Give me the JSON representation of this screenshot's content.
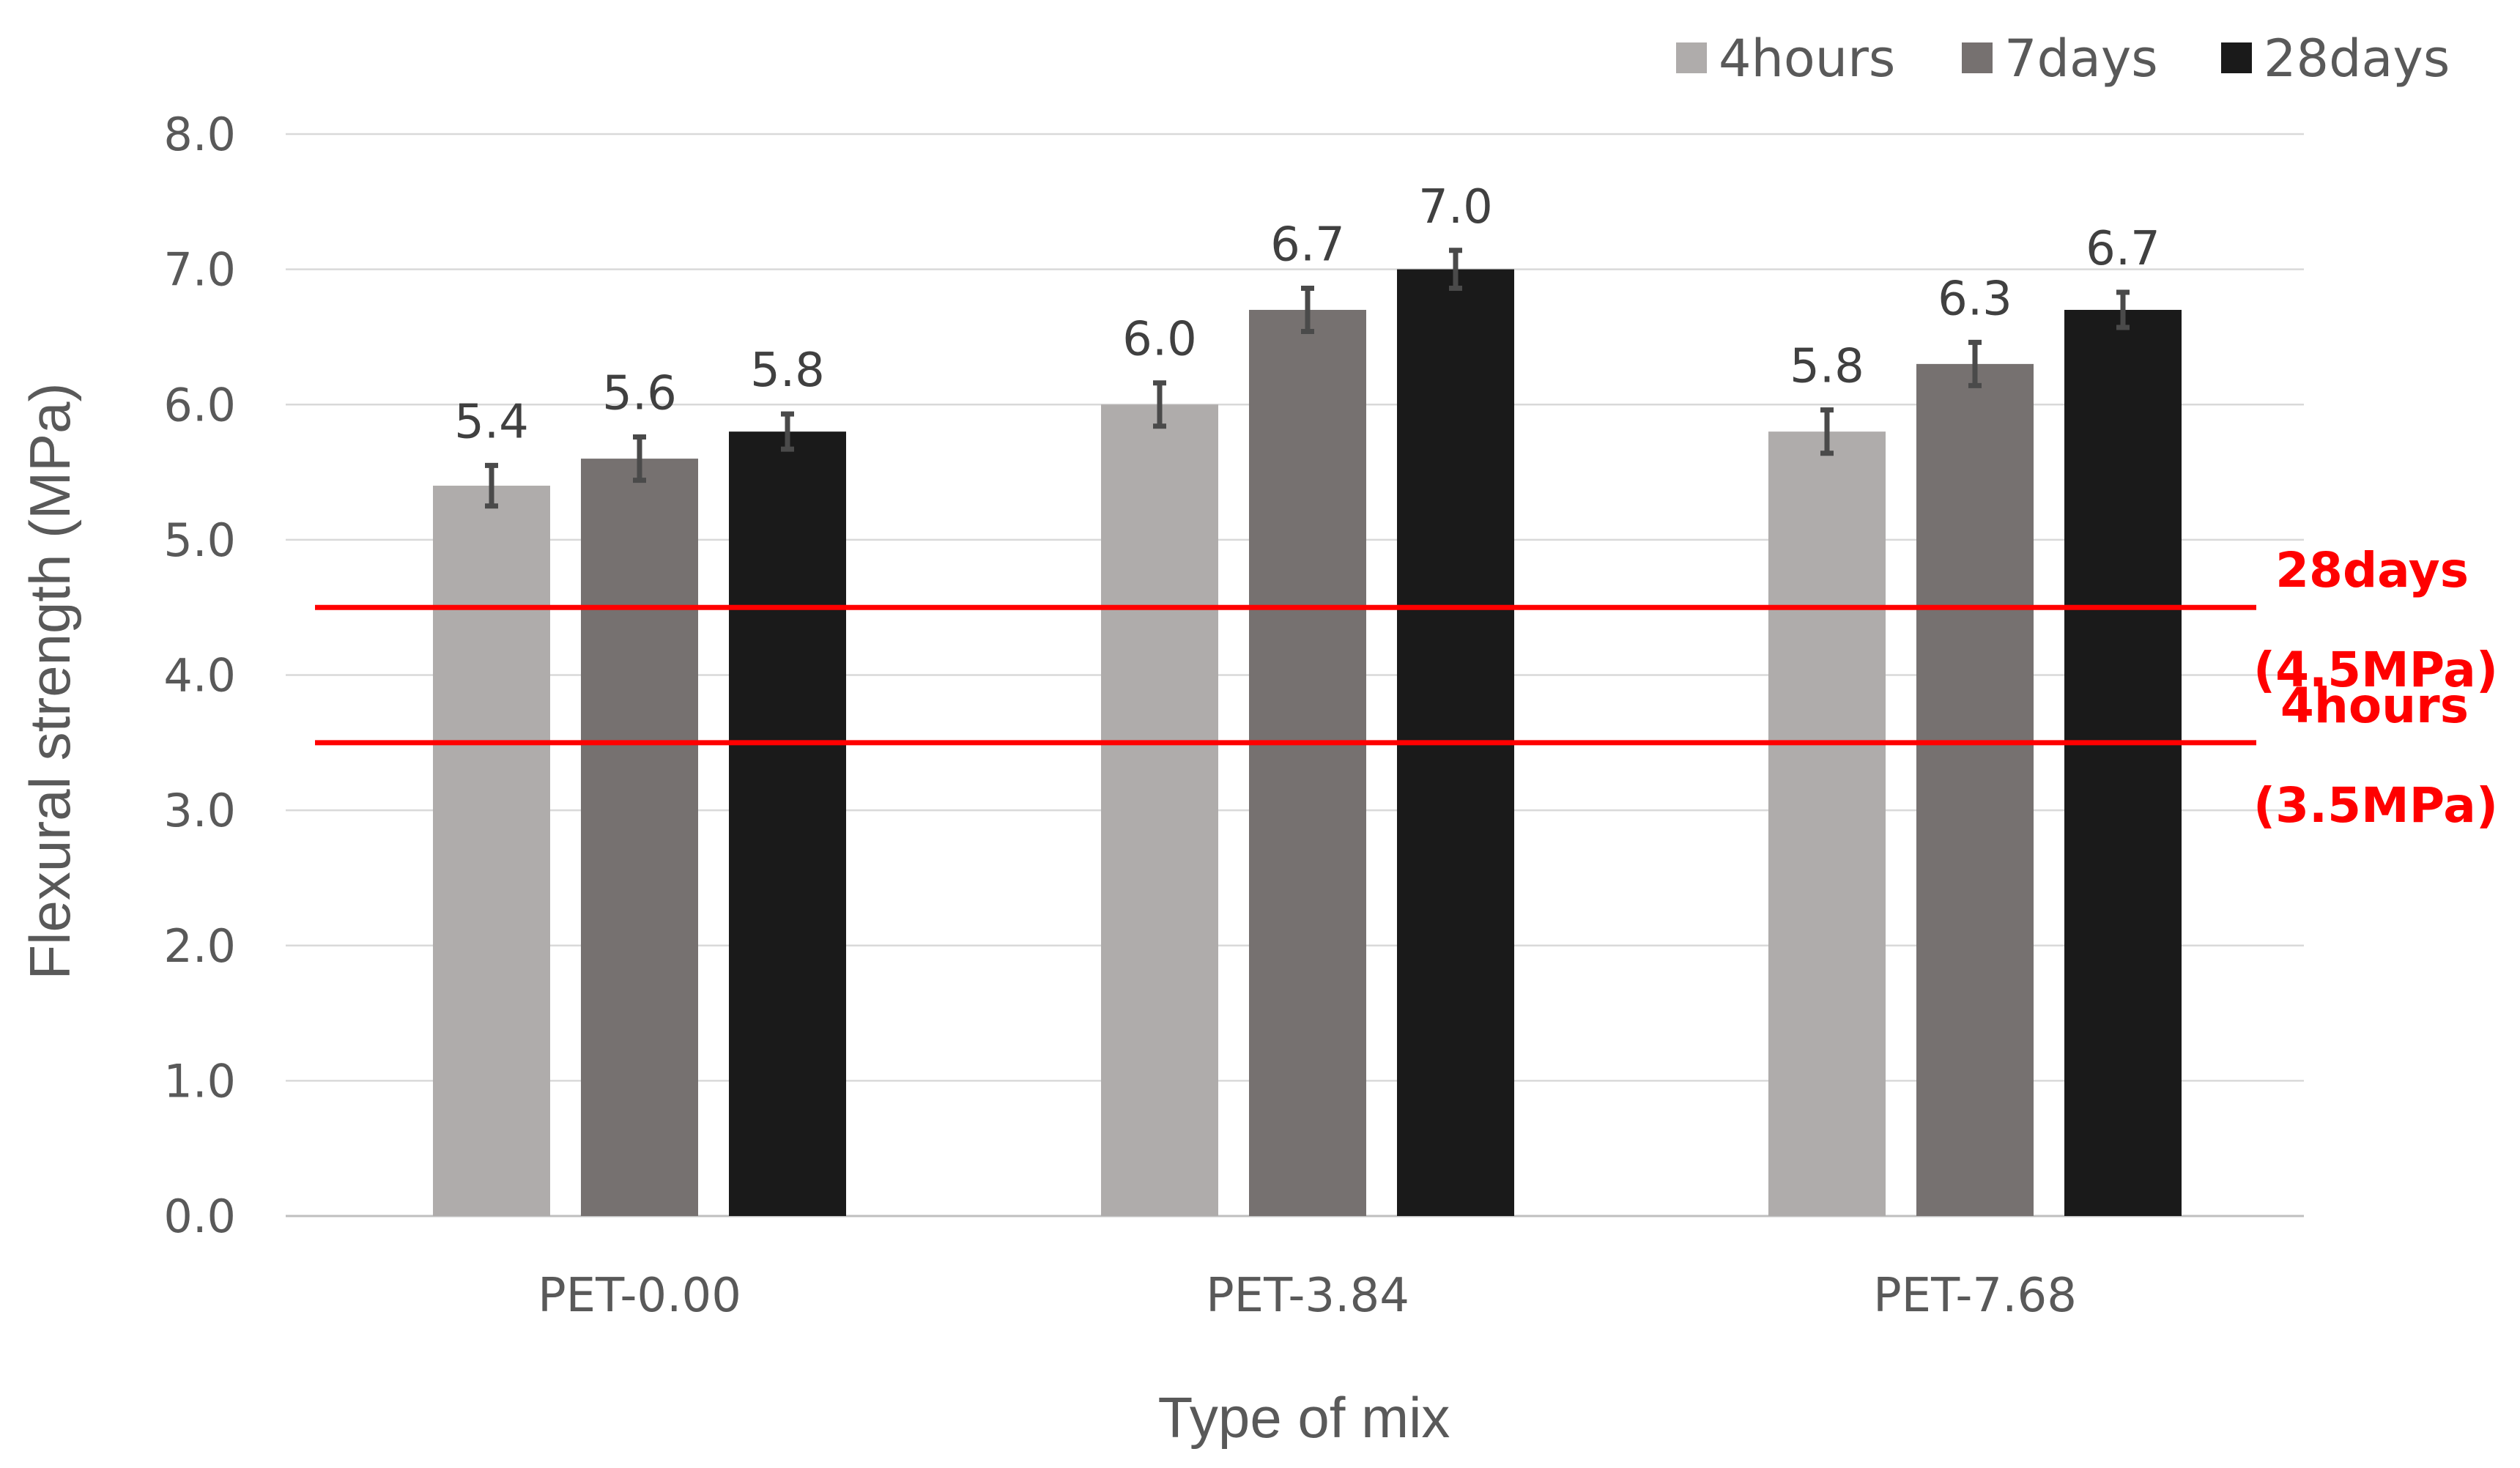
{
  "chart_data": {
    "type": "bar",
    "title": "",
    "xlabel": "Type of mix",
    "ylabel": "Flexural strength (MPa)",
    "ylim": [
      0,
      8
    ],
    "yticks": [
      "0.0",
      "1.0",
      "2.0",
      "3.0",
      "4.0",
      "5.0",
      "6.0",
      "7.0",
      "8.0"
    ],
    "grid": true,
    "legend_position": "top-right",
    "categories": [
      "PET-0.00",
      "PET-3.84",
      "PET-7.68"
    ],
    "series": [
      {
        "name": "4hours",
        "color": "#afacab",
        "values": [
          5.4,
          6.0,
          5.8
        ],
        "labels": [
          "5.4",
          "6.0",
          "5.8"
        ],
        "errors": [
          0.15,
          0.16,
          0.16
        ]
      },
      {
        "name": "7days",
        "color": "#767170",
        "values": [
          5.6,
          6.7,
          6.3
        ],
        "labels": [
          "5.6",
          "6.7",
          "6.3"
        ],
        "errors": [
          0.16,
          0.16,
          0.16
        ]
      },
      {
        "name": "28days",
        "color": "#1a1a1a",
        "values": [
          5.8,
          7.0,
          6.7
        ],
        "labels": [
          "5.8",
          "7.0",
          "6.7"
        ],
        "errors": [
          0.13,
          0.14,
          0.13
        ]
      }
    ],
    "reference_lines": [
      {
        "value": 4.5,
        "color": "#ff0000",
        "label_line1": "28days",
        "label_line2": "(4.5MPa)"
      },
      {
        "value": 3.5,
        "color": "#ff0000",
        "label_line1": "4hours",
        "label_line2": "(3.5MPa)"
      }
    ]
  }
}
